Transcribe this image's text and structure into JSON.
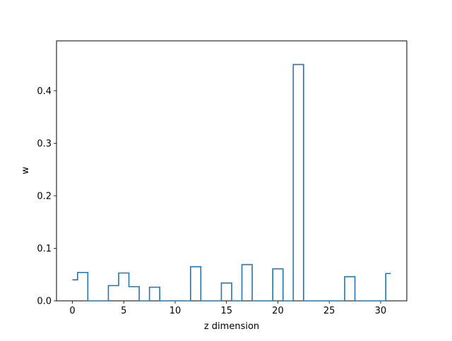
{
  "chart_data": {
    "type": "line",
    "drawstyle": "steps-mid",
    "title": "",
    "xlabel": "z dimension",
    "ylabel": "w",
    "xlim": [
      -1.55,
      32.55
    ],
    "ylim": [
      0,
      0.495
    ],
    "xticks": [
      0,
      5,
      10,
      15,
      20,
      25,
      30
    ],
    "yticks": [
      0.0,
      0.1,
      0.2,
      0.3,
      0.4
    ],
    "ytick_labels": [
      "0.0",
      "0.1",
      "0.2",
      "0.3",
      "0.4"
    ],
    "grid": false,
    "legend": "none",
    "series": [
      {
        "color": "#1f77b4",
        "x": [
          0,
          1,
          2,
          3,
          4,
          5,
          6,
          7,
          8,
          9,
          10,
          11,
          12,
          13,
          14,
          15,
          16,
          17,
          18,
          19,
          20,
          21,
          22,
          23,
          24,
          25,
          26,
          27,
          28,
          29,
          30,
          31
        ],
        "values": [
          0.04,
          0.054,
          0.0,
          0.0,
          0.029,
          0.053,
          0.027,
          0.0,
          0.026,
          0.0,
          0.0,
          0.0,
          0.065,
          0.0,
          0.0,
          0.034,
          0.0,
          0.069,
          0.0,
          0.0,
          0.061,
          0.0,
          0.45,
          0.0,
          0.0,
          0.0,
          0.0,
          0.046,
          0.0,
          0.0,
          0.0,
          0.052
        ]
      }
    ]
  }
}
